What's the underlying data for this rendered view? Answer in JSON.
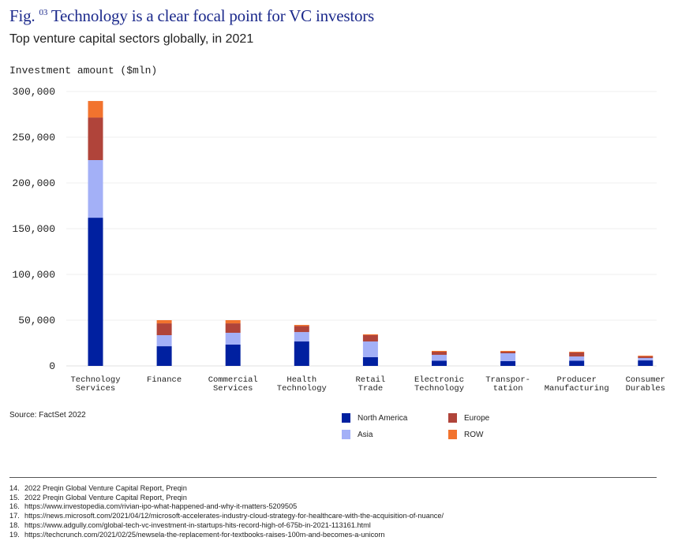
{
  "header": {
    "fig_prefix": "Fig.",
    "fig_number": "03",
    "title": "Technology is a clear focal point for VC investors",
    "subtitle": "Top venture capital sectors globally, in 2021"
  },
  "chart_data": {
    "type": "bar",
    "stacked": true,
    "title": "Technology is a clear focal point for VC investors",
    "subtitle": "Top venture capital sectors globally, in 2021",
    "xlabel": "",
    "ylabel": "Investment amount ($mln)",
    "ylim": [
      0,
      300000
    ],
    "yticks": [
      "0",
      "50,000",
      "100,000",
      "150,000",
      "200,000",
      "250,000",
      "300,000"
    ],
    "grid": true,
    "legend_position": "bottom-right",
    "categories": [
      [
        "Technology",
        "Services"
      ],
      [
        "Finance"
      ],
      [
        "Commercial",
        "Services"
      ],
      [
        "Health",
        "Technology"
      ],
      [
        "Retail",
        "Trade"
      ],
      [
        "Electronic",
        "Technology"
      ],
      [
        "Transpor-",
        "tation"
      ],
      [
        "Producer",
        "Manufacturing"
      ],
      [
        "Consumer",
        "Durables"
      ]
    ],
    "series": [
      {
        "name": "North America",
        "color": "#0020a0",
        "values": [
          162000,
          21500,
          23300,
          26700,
          9500,
          5600,
          5200,
          5600,
          6000
        ]
      },
      {
        "name": "Asia",
        "color": "#a3b0f7",
        "values": [
          63000,
          12100,
          12900,
          10300,
          17200,
          6500,
          8600,
          4700,
          2600
        ]
      },
      {
        "name": "Europe",
        "color": "#b0443a",
        "values": [
          46500,
          12900,
          10300,
          6500,
          6900,
          3400,
          1700,
          4400,
          1700
        ]
      },
      {
        "name": "ROW",
        "color": "#f2732e",
        "values": [
          18100,
          3500,
          3500,
          1300,
          900,
          900,
          900,
          800,
          900
        ]
      }
    ]
  },
  "source": "Source: FactSet 2022",
  "footnotes": [
    {
      "num": "14.",
      "text": "2022 Preqin Global Venture Capital Report, Preqin"
    },
    {
      "num": "15.",
      "text": "2022 Preqin Global Venture Capital Report, Preqin"
    },
    {
      "num": "16.",
      "text": "https://www.investopedia.com/rivian-ipo-what-happened-and-why-it-matters-5209505"
    },
    {
      "num": "17.",
      "text": "https://news.microsoft.com/2021/04/12/microsoft-accelerates-industry-cloud-strategy-for-healthcare-with-the-acquisition-of-nuance/"
    },
    {
      "num": "18.",
      "text": "https://www.adgully.com/global-tech-vc-investment-in-startups-hits-record-high-of-675b-in-2021-113161.html"
    },
    {
      "num": "19.",
      "text": "https://techcrunch.com/2021/02/25/newsela-the-replacement-for-textbooks-raises-100m-and-becomes-a-unicorn"
    }
  ]
}
